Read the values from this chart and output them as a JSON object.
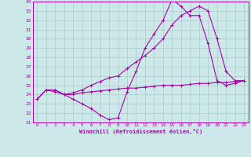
{
  "title": "",
  "xlabel": "Windchill (Refroidissement éolien,°C)",
  "ylabel": "",
  "xlim": [
    -0.5,
    23.5
  ],
  "ylim": [
    21,
    34
  ],
  "xticks": [
    0,
    1,
    2,
    3,
    4,
    5,
    6,
    7,
    8,
    9,
    10,
    11,
    12,
    13,
    14,
    15,
    16,
    17,
    18,
    19,
    20,
    21,
    22,
    23
  ],
  "yticks": [
    21,
    22,
    23,
    24,
    25,
    26,
    27,
    28,
    29,
    30,
    31,
    32,
    33,
    34
  ],
  "bg_color": "#cce8e8",
  "line_color": "#aa00aa",
  "grid_color": "#aacccc",
  "line1_x": [
    0,
    1,
    2,
    3,
    4,
    5,
    6,
    7,
    8,
    9,
    10,
    11,
    12,
    13,
    14,
    15,
    16,
    17,
    18,
    19,
    20,
    21,
    22,
    23
  ],
  "line1_y": [
    23.5,
    24.5,
    24.5,
    24.0,
    24.0,
    24.2,
    24.3,
    24.4,
    24.5,
    24.6,
    24.7,
    24.7,
    24.8,
    24.9,
    25.0,
    25.0,
    25.0,
    25.1,
    25.2,
    25.2,
    25.3,
    25.3,
    25.4,
    25.5
  ],
  "line2_x": [
    0,
    1,
    2,
    3,
    4,
    5,
    6,
    7,
    8,
    9,
    10,
    11,
    12,
    13,
    14,
    15,
    16,
    17,
    18,
    19,
    20,
    21,
    22,
    23
  ],
  "line2_y": [
    23.5,
    24.5,
    24.3,
    24.0,
    23.5,
    23.0,
    22.5,
    21.8,
    21.3,
    21.5,
    24.3,
    26.5,
    29.0,
    30.5,
    32.0,
    34.2,
    33.5,
    32.5,
    32.5,
    29.5,
    25.5,
    25.0,
    25.2,
    25.5
  ],
  "line3_x": [
    0,
    1,
    2,
    3,
    4,
    5,
    6,
    7,
    8,
    9,
    10,
    11,
    12,
    13,
    14,
    15,
    16,
    17,
    18,
    19,
    20,
    21,
    22,
    23
  ],
  "line3_y": [
    23.5,
    24.5,
    24.5,
    24.0,
    24.2,
    24.5,
    25.0,
    25.4,
    25.8,
    26.0,
    26.8,
    27.5,
    28.2,
    29.0,
    30.0,
    31.5,
    32.5,
    33.0,
    33.5,
    33.0,
    30.0,
    26.5,
    25.5,
    25.5
  ]
}
